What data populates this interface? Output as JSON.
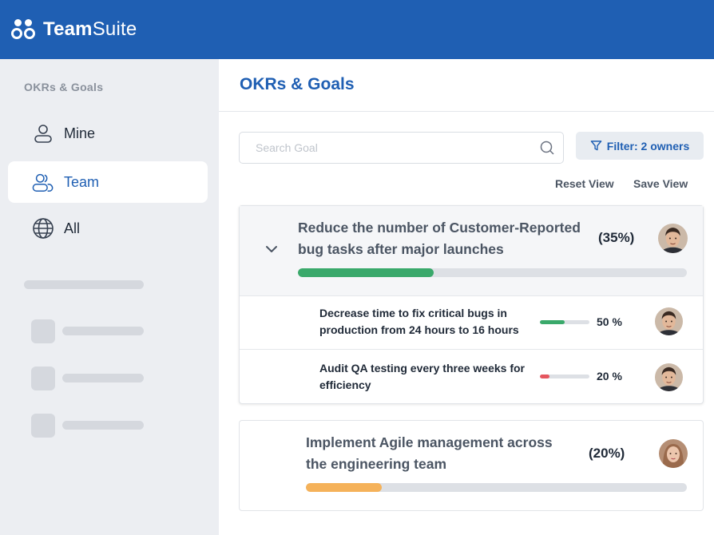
{
  "app": {
    "brand_bold": "Team",
    "brand_light": "Suite"
  },
  "sidebar": {
    "heading": "OKRs & Goals",
    "items": [
      {
        "label": "Mine",
        "icon": "user-icon",
        "active": false
      },
      {
        "label": "Team",
        "icon": "users-icon",
        "active": true
      },
      {
        "label": "All",
        "icon": "globe-icon",
        "active": false
      }
    ]
  },
  "main": {
    "title": "OKRs & Goals",
    "search": {
      "placeholder": "Search Goal",
      "value": ""
    },
    "filter_label": "Filter: 2 owners",
    "reset_view": "Reset View",
    "save_view": "Save View",
    "goals": [
      {
        "title_line1": "Reduce the number of Customer-Reported",
        "title_line2": "bug tasks after major launches",
        "percent_text": "(35%)",
        "progress": 35,
        "color": "#3aa96b",
        "expanded": true,
        "key_results": [
          {
            "line1": "Decrease time to fix critical bugs in",
            "line2": "production from 24 hours to 16 hours",
            "percent_text": "50 %",
            "progress": 50,
            "color": "#3aa96b"
          },
          {
            "line1": "Audit QA testing every three weeks for",
            "line2": "efficiency",
            "percent_text": "20 %",
            "progress": 20,
            "color": "#e5565f"
          }
        ]
      },
      {
        "title_line1": "Implement Agile management across",
        "title_line2": "the engineering team",
        "percent_text": "(20%)",
        "progress": 20,
        "color": "#f5b25a",
        "expanded": false
      }
    ]
  }
}
